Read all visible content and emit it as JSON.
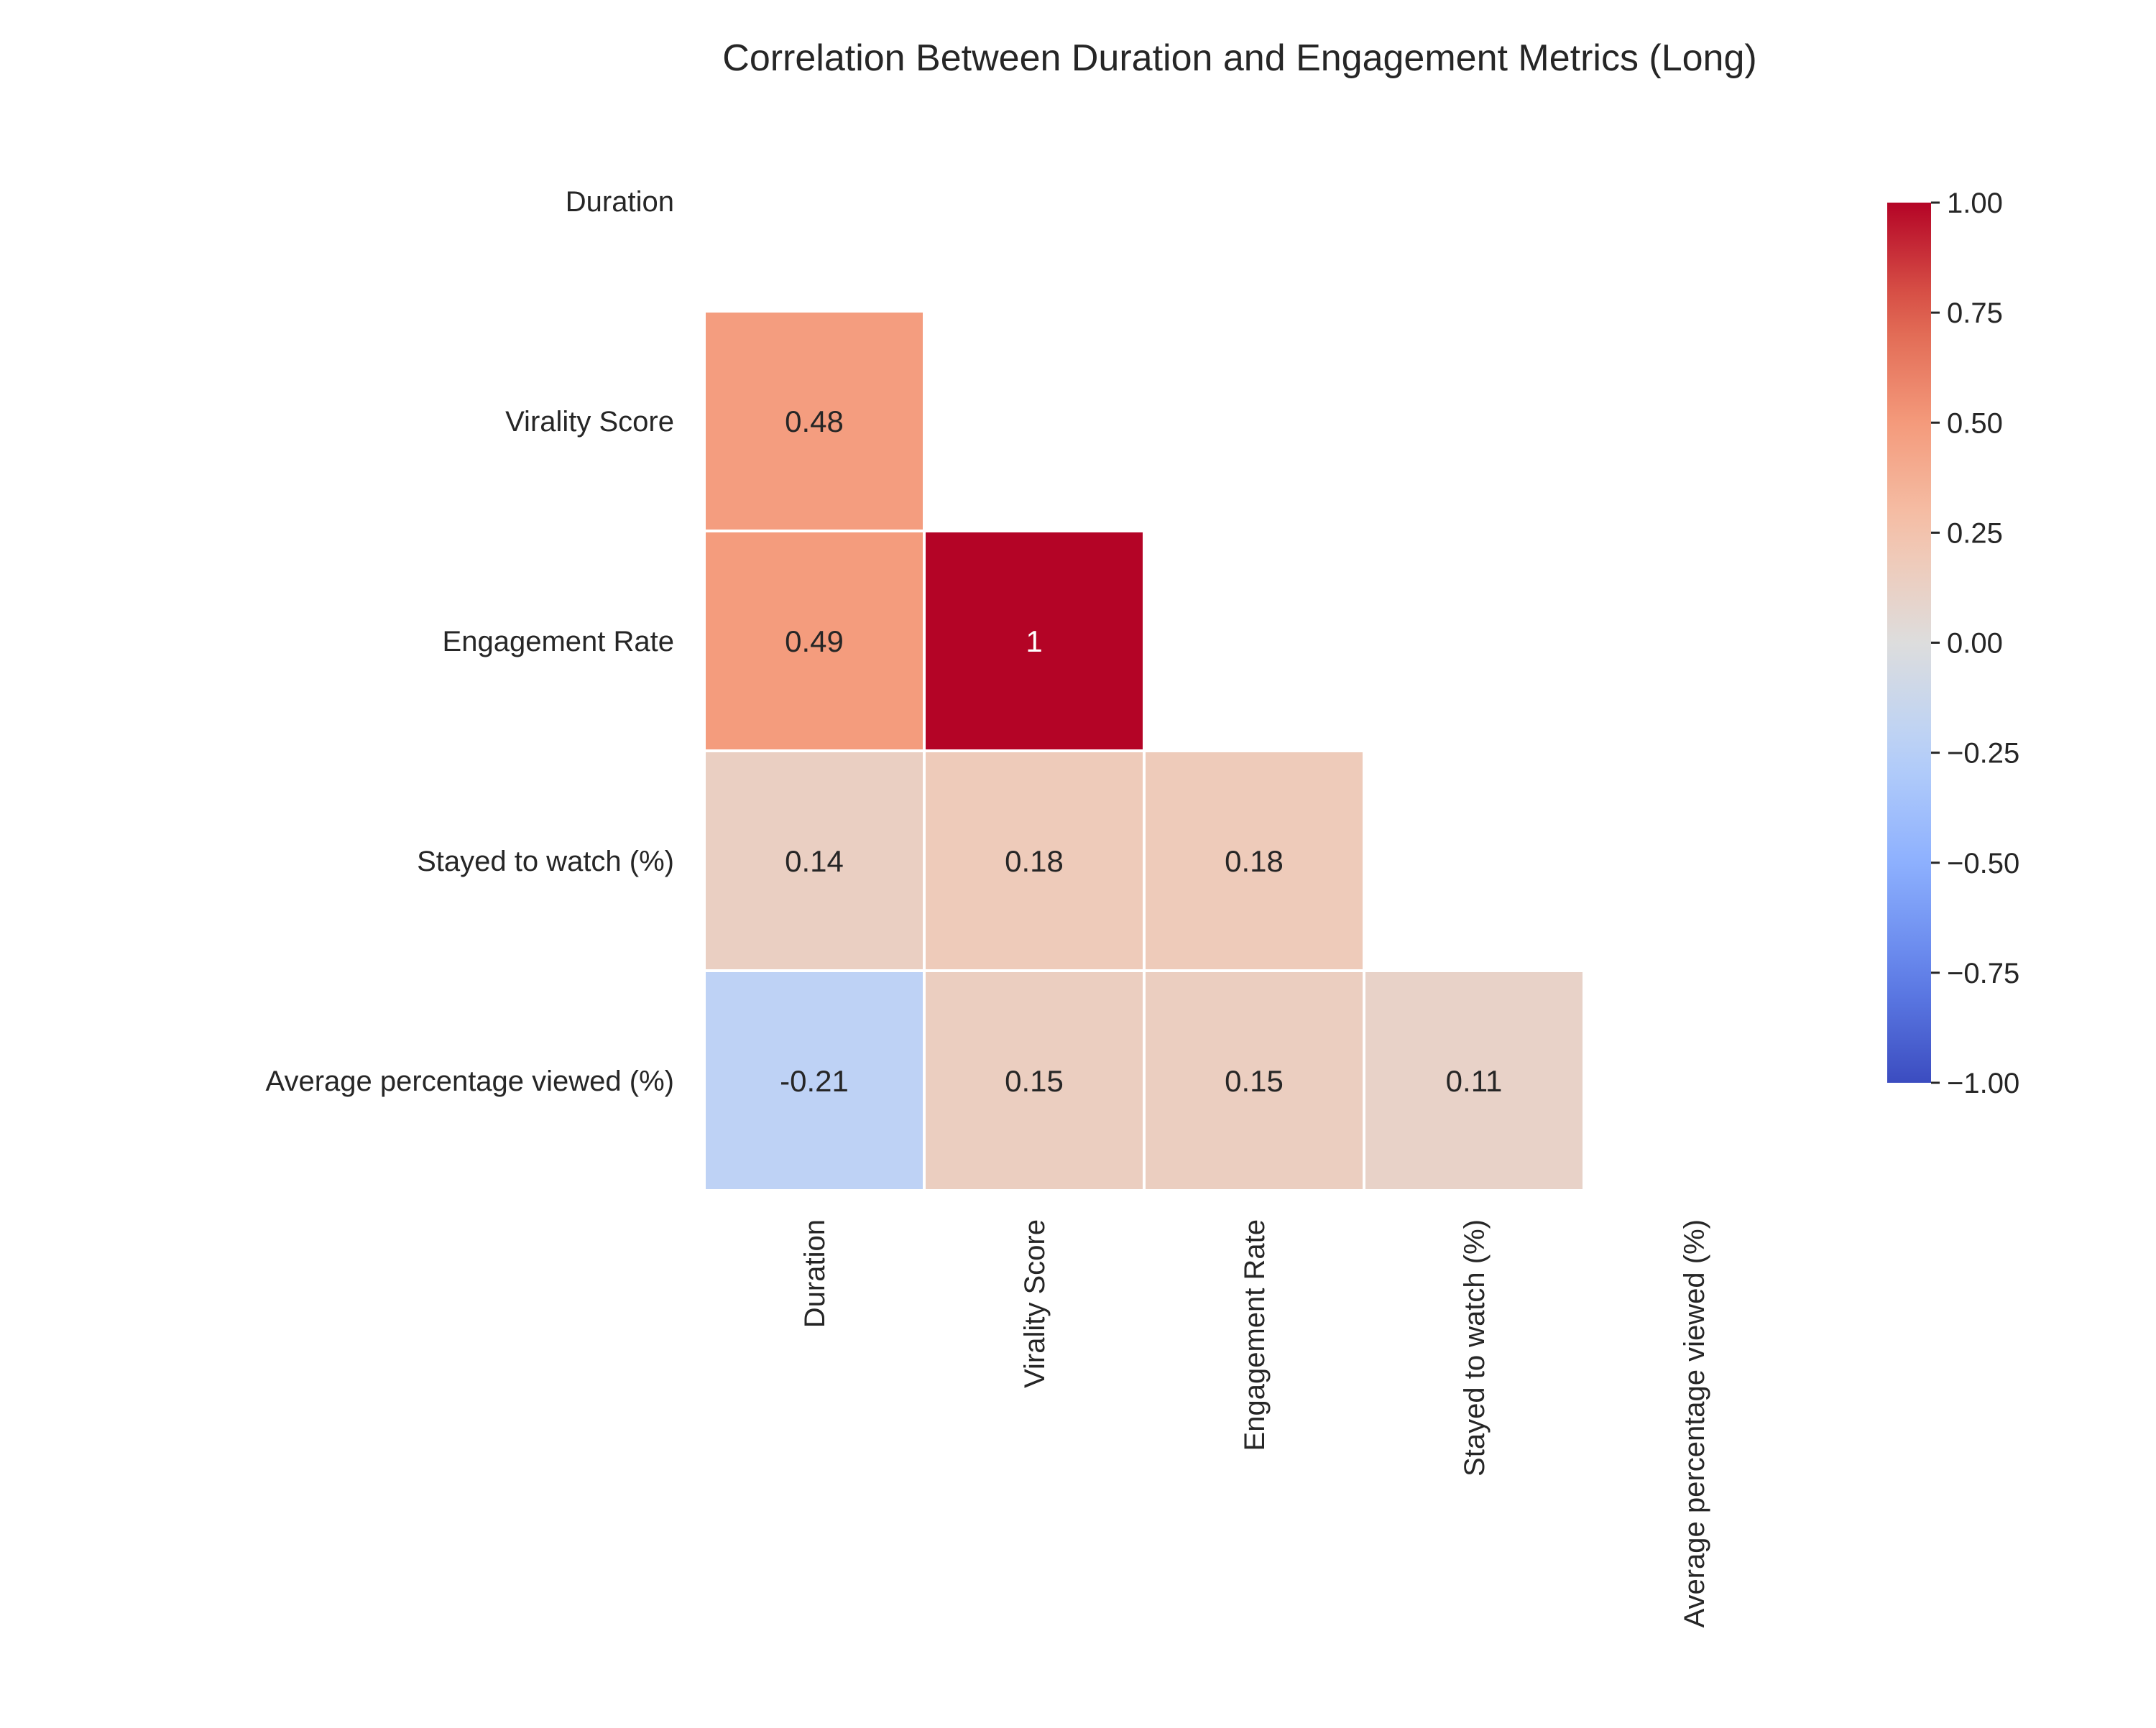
{
  "chart_data": {
    "type": "heatmap",
    "title": "Correlation Between Duration and Engagement Metrics (Long)",
    "row_labels": [
      "Duration",
      "Virality Score",
      "Engagement Rate",
      "Stayed to watch (%)",
      "Average percentage viewed (%)"
    ],
    "col_labels": [
      "Duration",
      "Virality Score",
      "Engagement Rate",
      "Stayed to watch (%)",
      "Average percentage viewed (%)"
    ],
    "mask": "upper triangle incl. diagonal",
    "values": [
      [
        null,
        null,
        null,
        null,
        null
      ],
      [
        0.48,
        null,
        null,
        null,
        null
      ],
      [
        0.49,
        1.0,
        null,
        null,
        null
      ],
      [
        0.14,
        0.18,
        0.18,
        null,
        null
      ],
      [
        -0.21,
        0.15,
        0.15,
        0.11,
        null
      ]
    ],
    "cell_labels": [
      [
        null,
        null,
        null,
        null,
        null
      ],
      [
        "0.48",
        null,
        null,
        null,
        null
      ],
      [
        "0.49",
        "1",
        null,
        null,
        null
      ],
      [
        "0.14",
        "0.18",
        "0.18",
        null,
        null
      ],
      [
        "-0.21",
        "0.15",
        "0.15",
        "0.11",
        null
      ]
    ],
    "colormap": "coolwarm",
    "vmin": -1.0,
    "vmax": 1.0,
    "colorbar_ticks": [
      1.0,
      0.75,
      0.5,
      0.25,
      0.0,
      -0.25,
      -0.5,
      -0.75,
      -1.0
    ],
    "colorbar_tick_labels": [
      "1.00",
      "0.75",
      "0.50",
      "0.25",
      "0.00",
      "−0.25",
      "−0.50",
      "−0.75",
      "−1.00"
    ],
    "grid": false,
    "legend": "colorbar-right"
  }
}
